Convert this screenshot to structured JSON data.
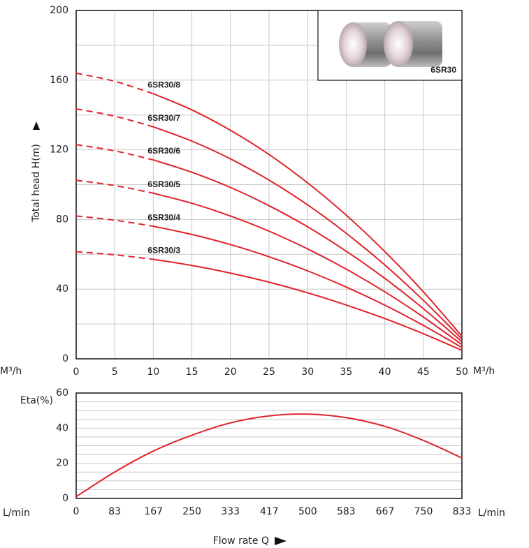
{
  "chart_data": [
    {
      "type": "line",
      "y_label": "Total head H(m)",
      "x_unit": "M³/h",
      "inset_label": "6SR30",
      "x": [
        0,
        5,
        10,
        15,
        20,
        25,
        30,
        35,
        40,
        45,
        50
      ],
      "xlim": [
        0,
        50
      ],
      "xticks": [
        0,
        5,
        10,
        15,
        20,
        25,
        30,
        35,
        40,
        45,
        50
      ],
      "ylim": [
        0,
        200
      ],
      "yticks": [
        0,
        40,
        80,
        120,
        160,
        200
      ],
      "ygrid": [
        20,
        40,
        60,
        80,
        100,
        120,
        140,
        160,
        180
      ],
      "xgrid": true,
      "dashed_until_x": 10,
      "series": [
        {
          "name": "6SR30/8",
          "color": "#e0232b",
          "values": [
            164,
            159.3,
            152.2,
            142.9,
            131.2,
            117.3,
            101,
            82.5,
            61.6,
            38.5,
            13
          ]
        },
        {
          "name": "6SR30/7",
          "color": "#e0232b",
          "values": [
            143.5,
            139.3,
            133.2,
            125.0,
            114.8,
            102.6,
            88.4,
            72.1,
            53.9,
            33.6,
            11.4
          ]
        },
        {
          "name": "6SR30/6",
          "color": "#e0232b",
          "values": [
            123,
            119.4,
            114.2,
            107.1,
            98.4,
            87.9,
            75.8,
            61.8,
            46.2,
            28.8,
            9.8
          ]
        },
        {
          "name": "6SR30/5",
          "color": "#e0232b",
          "values": [
            102.5,
            99.5,
            95.1,
            89.3,
            82.0,
            73.3,
            63.1,
            51.5,
            38.5,
            24.0,
            8.1
          ]
        },
        {
          "name": "6SR30/4",
          "color": "#e0232b",
          "values": [
            82,
            79.6,
            76.1,
            71.4,
            65.6,
            58.6,
            50.5,
            41.2,
            30.8,
            19.2,
            6.5
          ]
        },
        {
          "name": "6SR30/3",
          "color": "#e0232b",
          "values": [
            61.5,
            59.7,
            57.1,
            53.6,
            49.2,
            44.0,
            37.9,
            30.9,
            23.1,
            14.4,
            4.9
          ]
        }
      ]
    },
    {
      "type": "line",
      "y_label": "Eta(%)",
      "x_label": "Flow rate Q",
      "x_unit": "L/min",
      "x": [
        0,
        83,
        167,
        250,
        333,
        417,
        500,
        583,
        667,
        750,
        833
      ],
      "xlim": [
        0,
        833
      ],
      "xticks": [
        0,
        83,
        167,
        250,
        333,
        417,
        500,
        583,
        667,
        750,
        833
      ],
      "ylim": [
        0,
        60
      ],
      "yticks": [
        0,
        20,
        40,
        60
      ],
      "ygrid": [
        5,
        10,
        15,
        20,
        25,
        30,
        35,
        40,
        45,
        50,
        55
      ],
      "xgrid": false,
      "color": "#e0232b",
      "values": [
        1,
        15,
        27,
        36,
        43,
        47,
        48,
        46,
        41,
        33,
        23
      ]
    }
  ]
}
